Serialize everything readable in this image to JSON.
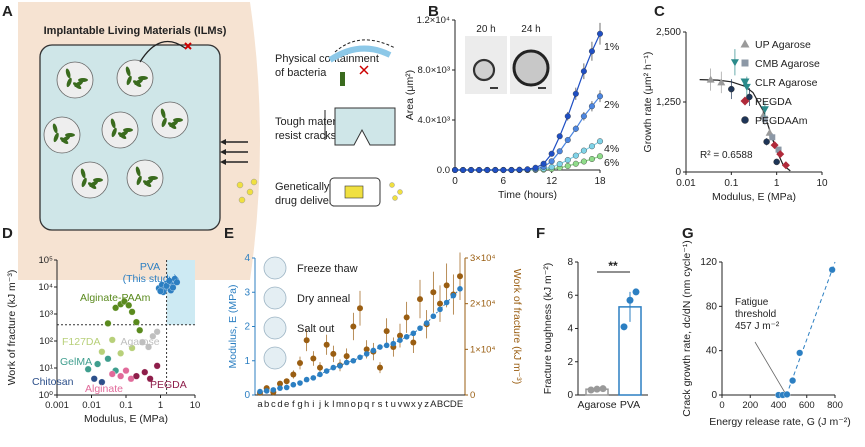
{
  "panels": {
    "A": {
      "label": "A",
      "title": "Implantable Living Materials (ILMs)",
      "features": [
        "Physical containment of bacteria",
        "Tough material to resist cracks",
        "Genetically controlled drug delivery"
      ]
    },
    "B": {
      "label": "B",
      "inset_labels": [
        "20 h",
        "24 h"
      ],
      "colors": [
        "#1f4fc4",
        "#4c86e0",
        "#7fd3e8",
        "#8fdc8a"
      ]
    },
    "C": {
      "label": "C",
      "r2": "R² = 0.6588"
    },
    "D": {
      "label": "D"
    },
    "E": {
      "label": "E",
      "methods": [
        "Freeze thaw",
        "Dry anneal",
        "Salt out"
      ]
    },
    "F": {
      "label": "F",
      "sig": "**"
    },
    "G": {
      "label": "G",
      "annotation": [
        "Fatigue",
        "threshold",
        "457 J m⁻²"
      ]
    }
  },
  "chart_data": [
    {
      "id": "B",
      "type": "line",
      "xlabel": "Time (hours)",
      "ylabel": "Area (μm²)",
      "xlim": [
        0,
        18
      ],
      "ylim": [
        0,
        12000
      ],
      "xticks": [
        "0",
        "6",
        "12",
        "18"
      ],
      "yticks": [
        "0.0",
        "4.0×10³",
        "8.0×10³",
        "1.2×10⁴"
      ],
      "x": [
        0,
        1,
        2,
        3,
        4,
        5,
        6,
        7,
        8,
        9,
        10,
        11,
        12,
        13,
        14,
        15,
        16,
        17,
        18
      ],
      "series": [
        {
          "name": "1%",
          "values": [
            0,
            0,
            0,
            0,
            0,
            0,
            0,
            0,
            20,
            60,
            180,
            500,
            1300,
            2700,
            4300,
            6100,
            7900,
            9500,
            10900
          ]
        },
        {
          "name": "2%",
          "values": [
            0,
            0,
            0,
            0,
            0,
            0,
            0,
            0,
            10,
            30,
            90,
            250,
            700,
            1500,
            2400,
            3300,
            4300,
            5100,
            5900
          ]
        },
        {
          "name": "4%",
          "values": [
            0,
            0,
            0,
            0,
            0,
            0,
            0,
            0,
            0,
            10,
            40,
            100,
            230,
            480,
            800,
            1150,
            1550,
            1900,
            2300
          ]
        },
        {
          "name": "6%",
          "values": [
            0,
            0,
            0,
            0,
            0,
            0,
            0,
            0,
            0,
            0,
            10,
            30,
            80,
            180,
            320,
            500,
            680,
            880,
            1100
          ]
        }
      ]
    },
    {
      "id": "C",
      "type": "scatter",
      "xlabel": "Modulus, E (MPa)",
      "ylabel": "Growth rate (μm² h⁻¹)",
      "xscale": "log",
      "xlim": [
        0.01,
        10
      ],
      "ylim": [
        0,
        2500
      ],
      "xticks": [
        "0.01",
        "0.1",
        "1",
        "10"
      ],
      "yticks": [
        "0",
        "1,250",
        "2,500"
      ],
      "series": [
        {
          "name": "UP Agarose",
          "color": "#9a9a9a",
          "marker": "triangle",
          "points": [
            [
              0.035,
              1650
            ],
            [
              0.06,
              1600
            ],
            [
              0.5,
              1000
            ],
            [
              0.7,
              700
            ]
          ]
        },
        {
          "name": "CMB Agarose",
          "color": "#8c98a6",
          "marker": "square",
          "points": [
            [
              0.55,
              950
            ],
            [
              0.8,
              620
            ],
            [
              1.1,
              400
            ]
          ]
        },
        {
          "name": "CLR Agarose",
          "color": "#2a8a8a",
          "marker": "triangle-down",
          "points": [
            [
              0.12,
              1960
            ],
            [
              0.22,
              1520
            ],
            [
              0.55,
              1120
            ]
          ]
        },
        {
          "name": "PEGDA",
          "color": "#b02a3a",
          "marker": "diamond",
          "points": [
            [
              0.9,
              480
            ],
            [
              1.2,
              320
            ],
            [
              1.6,
              120
            ]
          ]
        },
        {
          "name": "PEGDAAm",
          "color": "#1e3557",
          "marker": "circle",
          "points": [
            [
              0.1,
              1480
            ],
            [
              0.25,
              1340
            ],
            [
              0.6,
              540
            ],
            [
              1.0,
              180
            ]
          ]
        }
      ],
      "fit": [
        [
          0.02,
          1650
        ],
        [
          0.05,
          1640
        ],
        [
          0.1,
          1610
        ],
        [
          0.2,
          1530
        ],
        [
          0.3,
          1420
        ],
        [
          0.5,
          1100
        ],
        [
          0.7,
          750
        ],
        [
          1.0,
          380
        ],
        [
          1.4,
          120
        ],
        [
          2.0,
          20
        ]
      ]
    },
    {
      "id": "D",
      "type": "scatter",
      "xlabel": "Modulus, E (MPa)",
      "ylabel": "Work of fracture (kJ m⁻³)",
      "xscale": "log",
      "yscale": "log",
      "xlim": [
        0.001,
        10
      ],
      "ylim": [
        1,
        100000
      ],
      "xticks": [
        "0.001",
        "0.01",
        "0.1",
        "1",
        "10"
      ],
      "yticks": [
        "10⁰",
        "10¹",
        "10²",
        "10³",
        "10⁴",
        "10⁵"
      ],
      "groups": [
        {
          "name": "PVA",
          "sub": "(This study)",
          "color": "#2c7fc2",
          "points": [
            [
              0.9,
              9000
            ],
            [
              1.1,
              12000
            ],
            [
              1.3,
              8000
            ],
            [
              1.6,
              14000
            ],
            [
              1.9,
              10000
            ],
            [
              2.1,
              16000
            ],
            [
              2.4,
              13000
            ],
            [
              2.8,
              18000
            ],
            [
              1.2,
              6500
            ],
            [
              1.5,
              11000
            ],
            [
              2.0,
              7500
            ],
            [
              2.6,
              20000
            ],
            [
              3.0,
              15000
            ],
            [
              1.8,
              17000
            ],
            [
              2.3,
              9500
            ],
            [
              1.0,
              7000
            ]
          ]
        },
        {
          "name": "Alginate-PAAm",
          "color": "#5a8a1e",
          "points": [
            [
              0.03,
              450
            ],
            [
              0.05,
              1700
            ],
            [
              0.07,
              2300
            ],
            [
              0.09,
              2900
            ],
            [
              0.12,
              2100
            ],
            [
              0.15,
              1200
            ],
            [
              0.2,
              500
            ],
            [
              0.25,
              250
            ]
          ]
        },
        {
          "name": "F127DA",
          "color": "#b8d07a",
          "points": [
            [
              0.02,
              40
            ],
            [
              0.04,
              110
            ],
            [
              0.07,
              35
            ],
            [
              0.15,
              55
            ]
          ]
        },
        {
          "name": "Agarose",
          "color": "#bfbfbf",
          "points": [
            [
              0.3,
              90
            ],
            [
              0.6,
              150
            ],
            [
              0.8,
              220
            ],
            [
              0.45,
              60
            ]
          ]
        },
        {
          "name": "GelMA",
          "color": "#3f9e8e",
          "points": [
            [
              0.008,
              9
            ],
            [
              0.015,
              14
            ],
            [
              0.03,
              22
            ],
            [
              0.05,
              8
            ]
          ]
        },
        {
          "name": "Chitosan",
          "color": "#2c4f8a",
          "points": [
            [
              0.012,
              4
            ],
            [
              0.02,
              3
            ]
          ]
        },
        {
          "name": "Alginate",
          "color": "#e16a9a",
          "points": [
            [
              0.04,
              6
            ],
            [
              0.07,
              5
            ],
            [
              0.1,
              8
            ],
            [
              0.14,
              4
            ]
          ]
        },
        {
          "name": "PEGDA",
          "color": "#8e1e4a",
          "points": [
            [
              0.2,
              5
            ],
            [
              0.35,
              7
            ],
            [
              0.5,
              4
            ],
            [
              0.8,
              12
            ]
          ]
        }
      ]
    },
    {
      "id": "E",
      "type": "scatter",
      "ylabel": "Modulus, E (MPa)",
      "y2label": "Work of fracture (kJ m⁻³)",
      "ylim": [
        0,
        4
      ],
      "y2lim": [
        0,
        30000
      ],
      "yticks": [
        "0",
        "1",
        "2",
        "3",
        "4"
      ],
      "y2ticks": [
        "0",
        "1×10⁴",
        "2×10⁴",
        "3×10⁴"
      ],
      "categories": [
        "a",
        "b",
        "c",
        "d",
        "e",
        "f",
        "g",
        "h",
        "i",
        "j",
        "k",
        "l",
        "m",
        "n",
        "o",
        "p",
        "q",
        "r",
        "s",
        "t",
        "u",
        "v",
        "w",
        "x",
        "y",
        "z",
        "A",
        "B",
        "C",
        "D",
        "E"
      ],
      "modulus": [
        0.1,
        0.12,
        0.15,
        0.2,
        0.22,
        0.3,
        0.35,
        0.45,
        0.5,
        0.6,
        0.7,
        0.8,
        0.85,
        0.95,
        1.0,
        1.1,
        1.2,
        1.3,
        1.4,
        1.45,
        1.5,
        1.6,
        1.7,
        1.8,
        1.95,
        2.1,
        2.3,
        2.5,
        2.7,
        2.9,
        3.1
      ],
      "work": [
        500,
        1500,
        600,
        2500,
        3000,
        4500,
        7000,
        12000,
        8000,
        6000,
        11000,
        9000,
        6500,
        8500,
        15000,
        19000,
        10000,
        9500,
        6000,
        14000,
        10500,
        13000,
        17000,
        11500,
        21000,
        15500,
        22500,
        20000,
        24000,
        22000,
        26000
      ]
    },
    {
      "id": "F",
      "type": "bar",
      "ylabel": "Fracture toughness (kJ m⁻²)",
      "categories": [
        "Agarose",
        "PVA"
      ],
      "values": [
        0.35,
        5.3
      ],
      "points": [
        [
          0.3,
          0.35,
          0.38
        ],
        [
          4.1,
          5.7,
          6.2
        ]
      ],
      "ylim": [
        0,
        8
      ],
      "yticks": [
        "0",
        "2",
        "4",
        "6",
        "8"
      ]
    },
    {
      "id": "G",
      "type": "scatter",
      "xlabel": "Energy release rate, G (J m⁻²)",
      "ylabel": "Crack growth rate, dc/dN (nm cycle⁻¹)",
      "xlim": [
        0,
        800
      ],
      "ylim": [
        0,
        120
      ],
      "xticks": [
        "0",
        "200",
        "400",
        "600",
        "800"
      ],
      "yticks": [
        "0",
        "40",
        "80",
        "120"
      ],
      "x": [
        400,
        430,
        460,
        500,
        550,
        780
      ],
      "y": [
        0,
        0,
        0.5,
        13,
        38,
        113
      ],
      "fit": [
        [
          457,
          0
        ],
        [
          800,
          120
        ]
      ]
    }
  ]
}
